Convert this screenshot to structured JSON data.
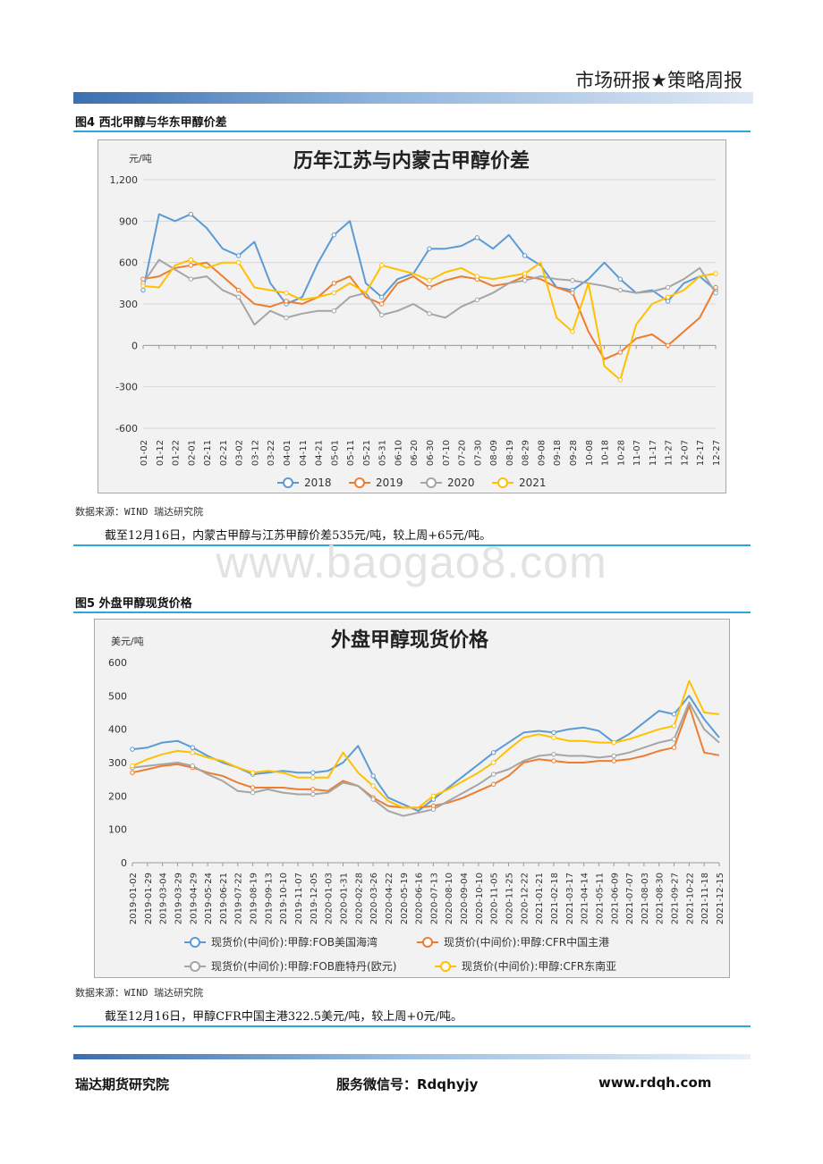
{
  "header": {
    "title": "市场研报★策略周报"
  },
  "figure4": {
    "caption": "图4 西北甲醇与华东甲醇价差",
    "source": "数据来源：WIND 瑞达研究院",
    "note": "截至12月16日，内蒙古甲醇与江苏甲醇价差535元/吨，较上周+65元/吨。"
  },
  "figure5": {
    "caption": "图5 外盘甲醇现货价格",
    "source": "数据来源：WIND 瑞达研究院",
    "note": "截至12月16日，甲醇CFR中国主港322.5美元/吨，较上周+0元/吨。"
  },
  "watermark": "www.baogao8.com",
  "footer": {
    "org": "瑞达期货研究院",
    "wechat": "服务微信号：Rdqhyjy",
    "site": "www.rdqh.com"
  },
  "chart_data": [
    {
      "type": "line",
      "title": "历年江苏与内蒙古甲醇价差",
      "ylabel": "元/吨",
      "ylim": [
        -600,
        1200
      ],
      "yticks": [
        "1,200",
        "900",
        "600",
        "300",
        "0",
        "-300",
        "-600"
      ],
      "ytick_values": [
        1200,
        900,
        600,
        300,
        0,
        -300,
        -600
      ],
      "grid": true,
      "legend": "bottom",
      "x": [
        "01-02",
        "01-12",
        "01-22",
        "02-01",
        "02-11",
        "02-21",
        "03-02",
        "03-12",
        "03-22",
        "04-01",
        "04-11",
        "04-21",
        "05-01",
        "05-11",
        "05-21",
        "05-31",
        "06-10",
        "06-20",
        "06-30",
        "07-10",
        "07-20",
        "07-30",
        "08-09",
        "08-19",
        "08-29",
        "09-08",
        "09-18",
        "09-28",
        "10-08",
        "10-18",
        "10-28",
        "11-07",
        "11-17",
        "11-27",
        "12-07",
        "12-17",
        "12-27"
      ],
      "series": [
        {
          "name": "2018",
          "color": "#5b9bd5",
          "values": [
            400,
            950,
            900,
            950,
            850,
            700,
            650,
            750,
            450,
            300,
            350,
            600,
            800,
            900,
            450,
            350,
            480,
            520,
            700,
            700,
            720,
            780,
            700,
            800,
            650,
            580,
            420,
            400,
            480,
            600,
            480,
            380,
            400,
            320,
            450,
            500,
            400
          ]
        },
        {
          "name": "2019",
          "color": "#ed7d31",
          "values": [
            480,
            500,
            560,
            580,
            600,
            500,
            400,
            300,
            280,
            320,
            300,
            350,
            450,
            500,
            350,
            300,
            450,
            500,
            420,
            470,
            500,
            480,
            430,
            450,
            500,
            480,
            420,
            380,
            100,
            -100,
            -50,
            50,
            80,
            0,
            100,
            200,
            420
          ]
        },
        {
          "name": "2020",
          "color": "#a5a5a5",
          "values": [
            450,
            620,
            550,
            480,
            500,
            400,
            350,
            150,
            250,
            200,
            230,
            250,
            250,
            350,
            380,
            220,
            250,
            300,
            230,
            200,
            280,
            330,
            380,
            450,
            470,
            500,
            480,
            470,
            450,
            430,
            400,
            380,
            390,
            420,
            480,
            560,
            380
          ]
        },
        {
          "name": "2021",
          "color": "#ffc000",
          "values": [
            430,
            420,
            580,
            620,
            560,
            600,
            600,
            420,
            400,
            380,
            330,
            350,
            380,
            450,
            380,
            580,
            550,
            520,
            470,
            530,
            560,
            500,
            480,
            500,
            520,
            600,
            200,
            100,
            450,
            -150,
            -250,
            150,
            300,
            350,
            400,
            500,
            520
          ]
        }
      ]
    },
    {
      "type": "line",
      "title": "外盘甲醇现货价格",
      "ylabel": "美元/吨",
      "ylim": [
        0,
        600
      ],
      "yticks": [
        "600",
        "500",
        "400",
        "300",
        "200",
        "100",
        "0"
      ],
      "ytick_values": [
        600,
        500,
        400,
        300,
        200,
        100,
        0
      ],
      "grid": false,
      "legend": "bottom",
      "x": [
        "2019-01-02",
        "2019-01-29",
        "2019-03-04",
        "2019-03-29",
        "2019-04-29",
        "2019-05-24",
        "2019-06-21",
        "2019-07-22",
        "2019-08-19",
        "2019-09-13",
        "2019-10-10",
        "2019-11-07",
        "2019-12-05",
        "2020-01-03",
        "2020-01-31",
        "2020-02-28",
        "2020-03-26",
        "2020-04-22",
        "2020-05-19",
        "2020-06-16",
        "2020-07-13",
        "2020-08-10",
        "2020-09-04",
        "2020-10-10",
        "2020-11-05",
        "2020-11-25",
        "2020-12-22",
        "2021-01-21",
        "2021-02-18",
        "2021-03-17",
        "2021-04-14",
        "2021-05-11",
        "2021-06-09",
        "2021-07-07",
        "2021-08-03",
        "2021-08-30",
        "2021-09-27",
        "2021-10-22",
        "2021-11-18",
        "2021-12-15"
      ],
      "series": [
        {
          "name": "现货价(中间价):甲醇:FOB美国海湾",
          "color": "#5b9bd5",
          "values": [
            340,
            345,
            360,
            365,
            345,
            320,
            300,
            285,
            265,
            270,
            275,
            270,
            270,
            275,
            300,
            350,
            260,
            195,
            175,
            155,
            190,
            225,
            260,
            295,
            330,
            360,
            390,
            395,
            390,
            400,
            405,
            395,
            360,
            385,
            420,
            455,
            445,
            500,
            430,
            375
          ]
        },
        {
          "name": "现货价(中间价):甲醇:CFR中国主港",
          "color": "#ed7d31",
          "values": [
            270,
            280,
            290,
            295,
            285,
            270,
            260,
            240,
            225,
            225,
            225,
            220,
            220,
            215,
            245,
            230,
            195,
            170,
            165,
            165,
            170,
            180,
            195,
            215,
            235,
            260,
            300,
            310,
            305,
            300,
            300,
            305,
            305,
            310,
            320,
            335,
            345,
            470,
            330,
            322
          ]
        },
        {
          "name": "现货价(中间价):甲醇:FOB鹿特丹(欧元)",
          "color": "#a5a5a5",
          "values": [
            285,
            290,
            295,
            300,
            290,
            265,
            245,
            215,
            210,
            220,
            210,
            205,
            205,
            210,
            240,
            230,
            190,
            155,
            140,
            150,
            160,
            185,
            210,
            235,
            265,
            280,
            305,
            320,
            325,
            320,
            320,
            315,
            320,
            330,
            345,
            360,
            370,
            480,
            400,
            360
          ]
        },
        {
          "name": "现货价(中间价):甲醇:CFR东南亚",
          "color": "#ffc000",
          "values": [
            290,
            310,
            325,
            335,
            330,
            315,
            305,
            285,
            270,
            275,
            270,
            255,
            255,
            255,
            330,
            270,
            230,
            185,
            165,
            165,
            200,
            220,
            245,
            270,
            300,
            340,
            375,
            385,
            375,
            365,
            365,
            360,
            360,
            370,
            385,
            400,
            410,
            545,
            450,
            445
          ]
        }
      ]
    }
  ]
}
